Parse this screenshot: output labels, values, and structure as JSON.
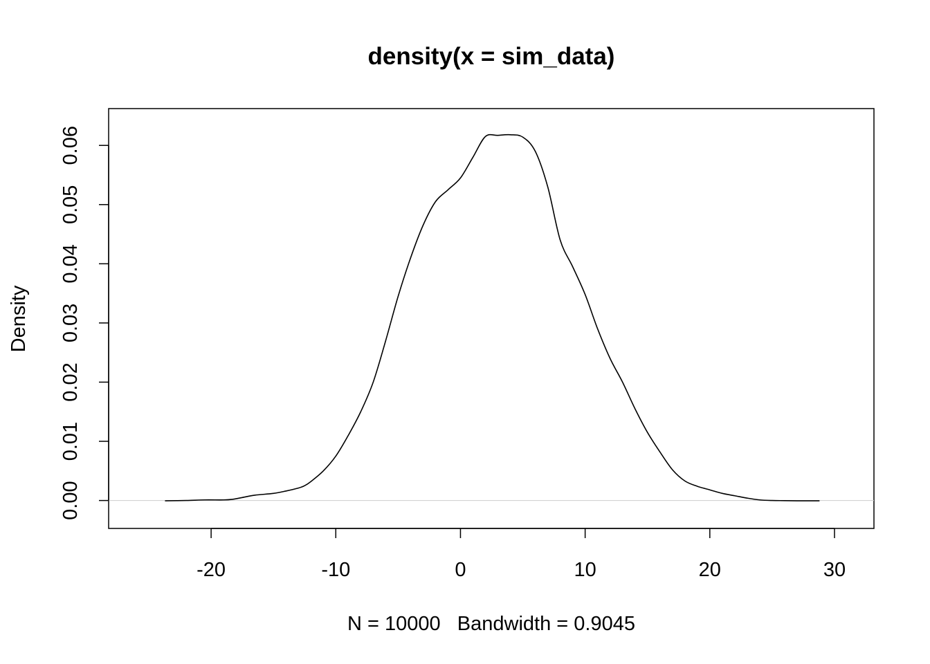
{
  "chart_data": {
    "type": "line",
    "title": "density(x = sim_data)",
    "xlabel": "N = 10000   Bandwidth = 0.9045",
    "ylabel": "Density",
    "xlim": [
      -26,
      31
    ],
    "ylim": [
      -0.0025,
      0.064
    ],
    "x_ticks": [
      -20,
      -10,
      0,
      10,
      20,
      30
    ],
    "x_tick_labels": [
      "-20",
      "-10",
      "0",
      "10",
      "20",
      "30"
    ],
    "y_ticks": [
      0.0,
      0.01,
      0.02,
      0.03,
      0.04,
      0.05,
      0.06
    ],
    "y_tick_labels": [
      "0.00",
      "0.01",
      "0.02",
      "0.03",
      "0.04",
      "0.05",
      "0.06"
    ],
    "grid": false,
    "zero_line": true,
    "colors": {
      "line": "#000000",
      "zero_line": "#cccccc",
      "background": "#ffffff"
    },
    "series": [
      {
        "x": [
          -23.7,
          -22,
          -20.5,
          -19,
          -18.3,
          -17.5,
          -16.5,
          -15,
          -14,
          -13,
          -12.5,
          -12,
          -11,
          -10,
          -9,
          -8,
          -7,
          -6,
          -5,
          -4,
          -3,
          -2,
          -1,
          0,
          1,
          2,
          3,
          4,
          5,
          6,
          7,
          8,
          9,
          10,
          11,
          12,
          13,
          14,
          15,
          16,
          17,
          18,
          19,
          20,
          21,
          22,
          23,
          24,
          25,
          26,
          27,
          28,
          28.8
        ],
        "y": [
          -5e-05,
          0.0,
          0.0001,
          0.0001,
          0.0002,
          0.0005,
          0.0009,
          0.0012,
          0.0016,
          0.0021,
          0.0025,
          0.0032,
          0.005,
          0.0075,
          0.011,
          0.015,
          0.02,
          0.027,
          0.0345,
          0.041,
          0.0465,
          0.0505,
          0.0525,
          0.0545,
          0.058,
          0.0615,
          0.0617,
          0.0618,
          0.0614,
          0.059,
          0.053,
          0.044,
          0.0395,
          0.0348,
          0.029,
          0.024,
          0.02,
          0.0155,
          0.0115,
          0.0082,
          0.0052,
          0.0033,
          0.0024,
          0.0018,
          0.0012,
          0.0008,
          0.0004,
          0.0001,
          0.0,
          -2e-05,
          -5e-05,
          -5e-05,
          -5e-05
        ]
      }
    ]
  }
}
